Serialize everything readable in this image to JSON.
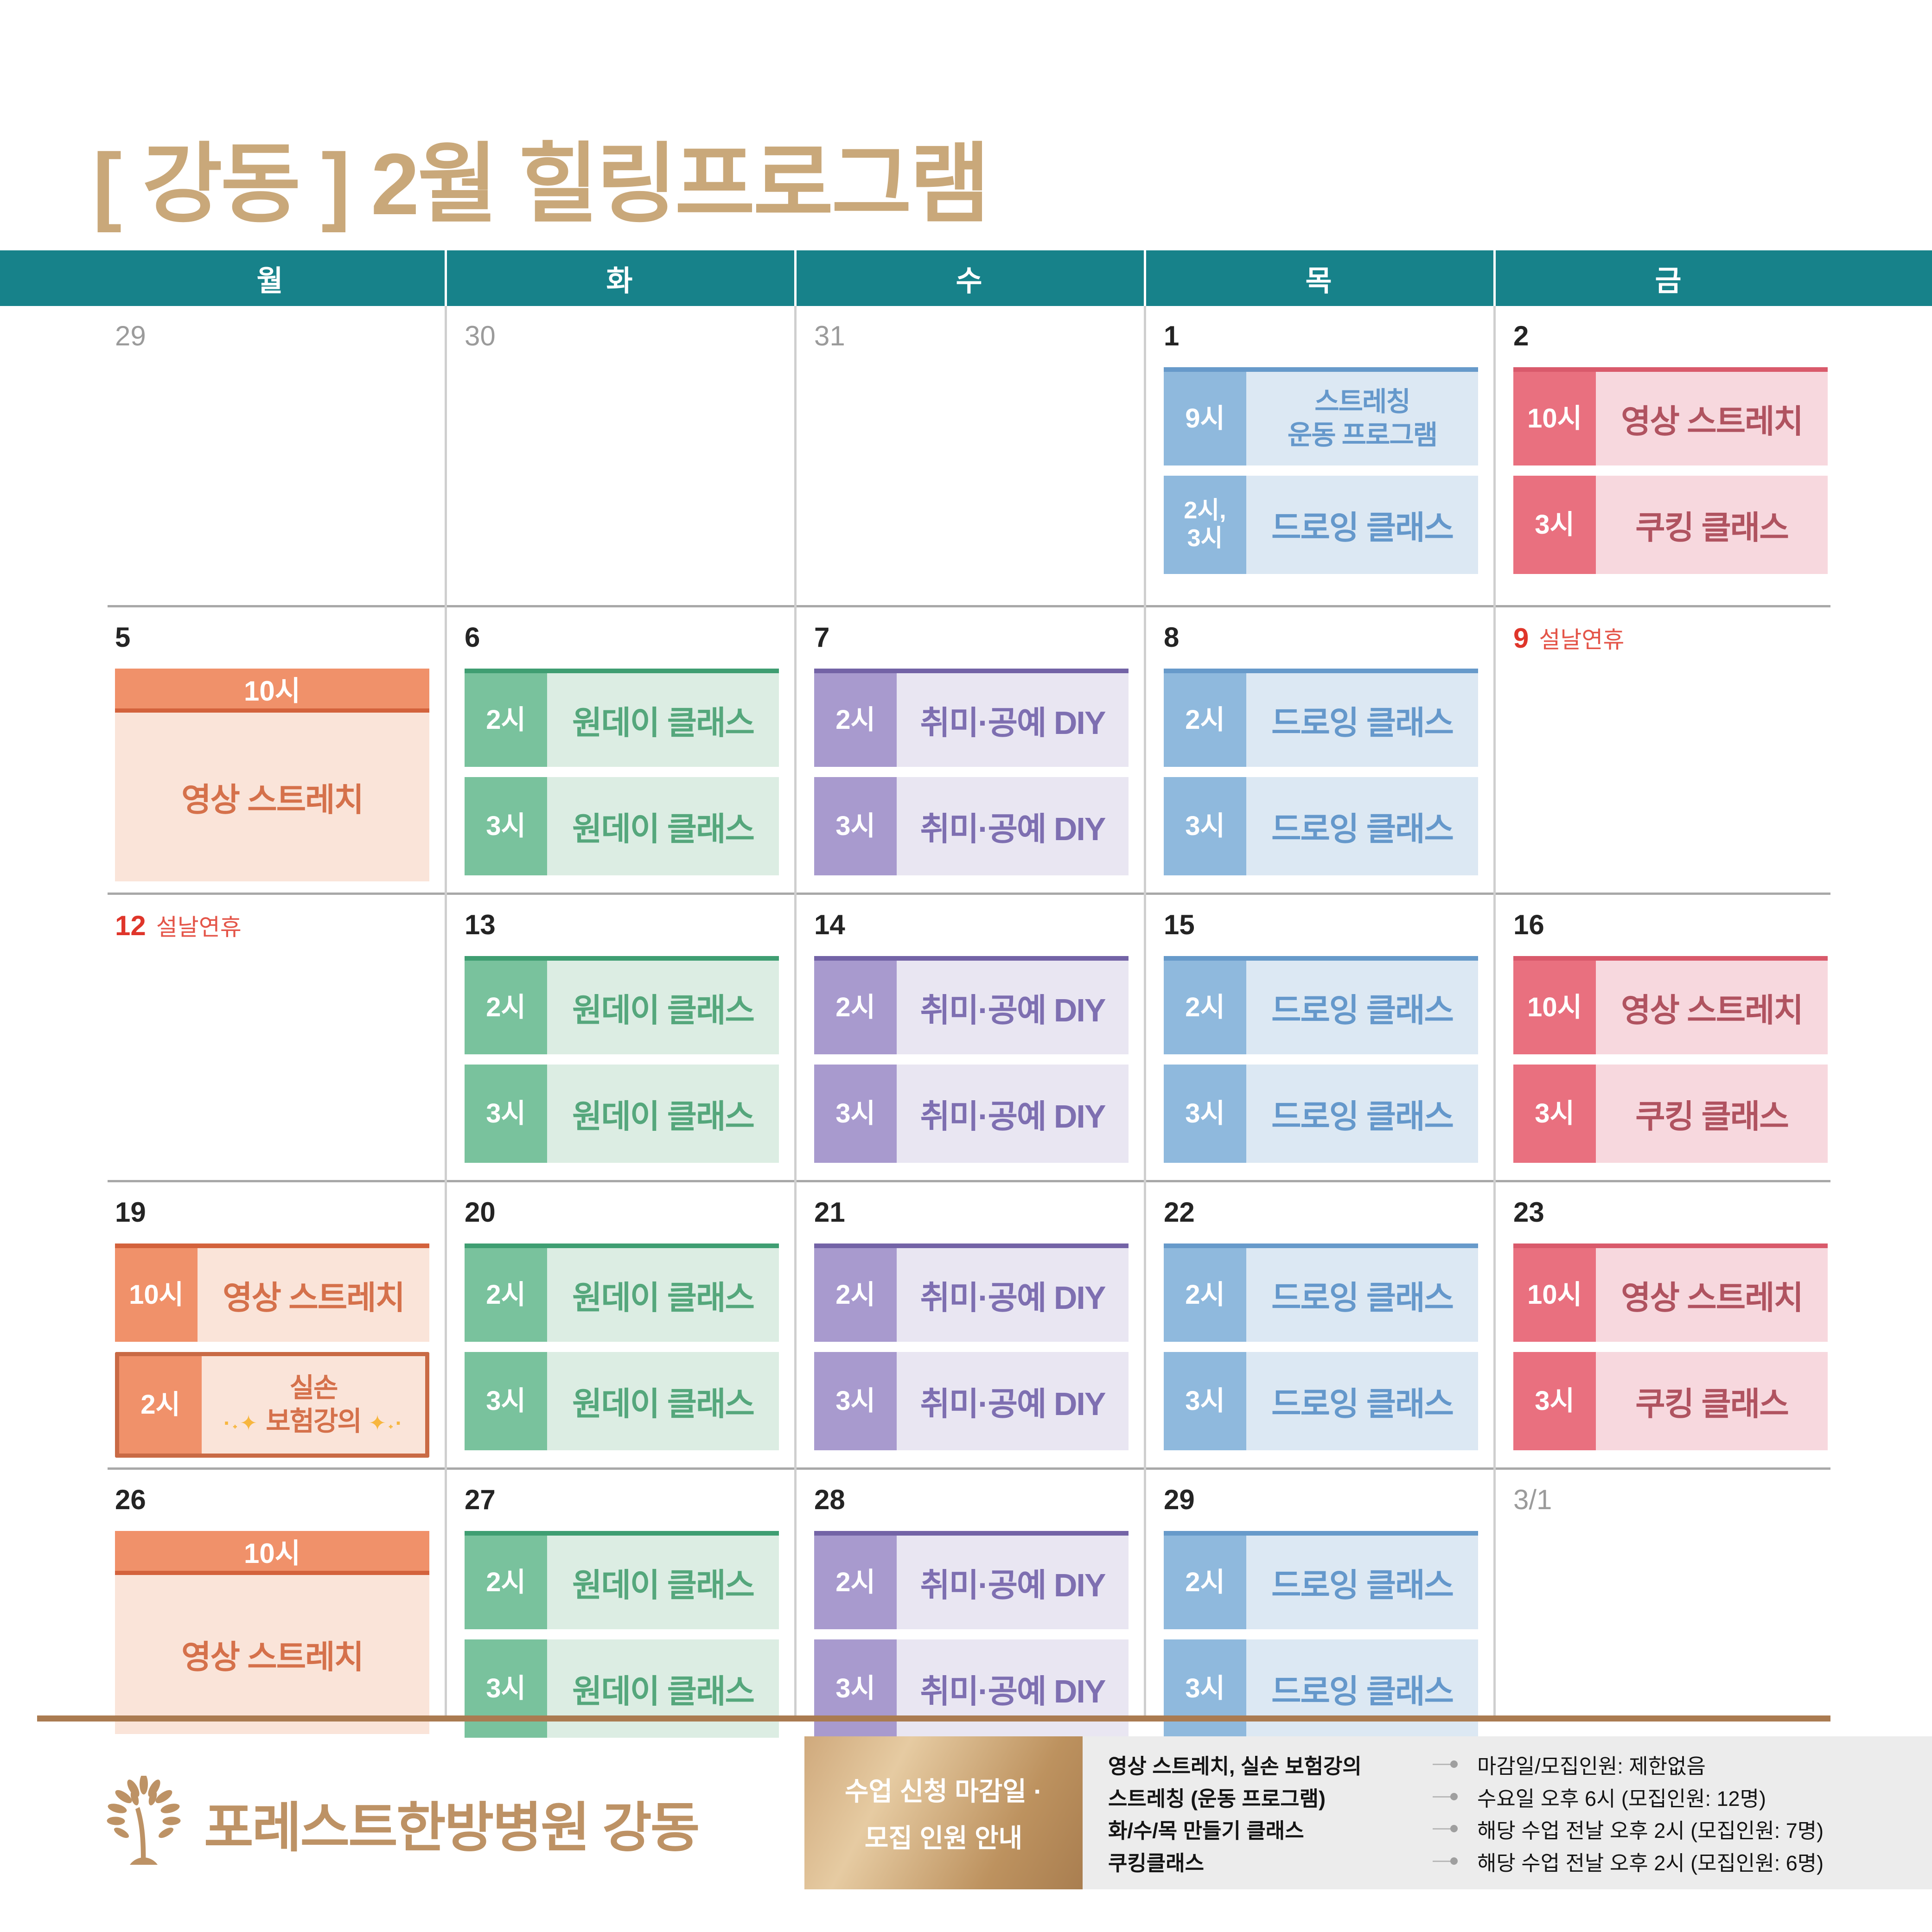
{
  "title": "[ 강동 ] 2월 힐링프로그램",
  "weekday_header": [
    "월",
    "화",
    "수",
    "목",
    "금"
  ],
  "colors": {
    "teal_header": "#17828a",
    "title_tan": "#c9a87a",
    "logo_tan": "#bd9265",
    "bottom_rule_brown": "#aa7b51",
    "holiday_red": "#df352a",
    "muted_date_gray": "#9b9b9b",
    "grid_line_gray": "#a8a8a8",
    "column_divider_gray": "#cfcfcf",
    "info_panel_gray": "#ececec",
    "sparkle_gold": "#f7b63e",
    "outline_orange": "#c96a45",
    "palettes": {
      "blue": {
        "top": "#679aca",
        "chip": "#8fb9dd",
        "body": "#dce8f3",
        "text": "#6598cb"
      },
      "red": {
        "top": "#d95a6b",
        "chip": "#e9707f",
        "body": "#f7d8de",
        "text": "#b05360"
      },
      "orange": {
        "top": "#d3623c",
        "chip": "#f0916a",
        "body": "#fae4d9",
        "text": "#d5714b"
      },
      "green": {
        "top": "#3f9e72",
        "chip": "#79c29d",
        "body": "#dcede3",
        "text": "#55a77c"
      },
      "purple": {
        "top": "#7363a6",
        "chip": "#a89ace",
        "body": "#e9e6f2",
        "text": "#7e6fb1"
      }
    }
  },
  "icons": {
    "sparkle_left": "·˖✦",
    "sparkle_right": "✦˖·",
    "tree_icon_name": "tree-icon"
  },
  "calendar": {
    "weeks": [
      {
        "days": [
          {
            "date": "29",
            "muted": true,
            "events": []
          },
          {
            "date": "30",
            "muted": true,
            "events": []
          },
          {
            "date": "31",
            "muted": true,
            "events": []
          },
          {
            "date": "1",
            "events": [
              {
                "time_lines": [
                  "9시"
                ],
                "title_lines": [
                  "스트레칭",
                  "운동 프로그램"
                ],
                "palette": "blue",
                "variant": "row",
                "top_border": true
              },
              {
                "time_lines": [
                  "2시,",
                  "3시"
                ],
                "title_lines": [
                  "드로잉 클래스"
                ],
                "palette": "blue",
                "variant": "row",
                "top_border": false
              }
            ]
          },
          {
            "date": "2",
            "events": [
              {
                "time_lines": [
                  "10시"
                ],
                "title_lines": [
                  "영상 스트레치"
                ],
                "palette": "red",
                "variant": "row",
                "top_border": true
              },
              {
                "time_lines": [
                  "3시"
                ],
                "title_lines": [
                  "쿠킹 클래스"
                ],
                "palette": "red",
                "variant": "row",
                "top_border": false
              }
            ]
          }
        ]
      },
      {
        "days": [
          {
            "date": "5",
            "events": [
              {
                "time_lines": [
                  "10시"
                ],
                "title_lines": [
                  "영상 스트레치"
                ],
                "palette": "orange",
                "variant": "banner",
                "top_border": true
              }
            ]
          },
          {
            "date": "6",
            "events": [
              {
                "time_lines": [
                  "2시"
                ],
                "title_lines": [
                  "원데이 클래스"
                ],
                "palette": "green",
                "variant": "row",
                "top_border": true
              },
              {
                "time_lines": [
                  "3시"
                ],
                "title_lines": [
                  "원데이 클래스"
                ],
                "palette": "green",
                "variant": "row",
                "top_border": false
              }
            ]
          },
          {
            "date": "7",
            "events": [
              {
                "time_lines": [
                  "2시"
                ],
                "title_lines": [
                  "취미·공예 DIY"
                ],
                "palette": "purple",
                "variant": "row",
                "top_border": true
              },
              {
                "time_lines": [
                  "3시"
                ],
                "title_lines": [
                  "취미·공예 DIY"
                ],
                "palette": "purple",
                "variant": "row",
                "top_border": false
              }
            ]
          },
          {
            "date": "8",
            "events": [
              {
                "time_lines": [
                  "2시"
                ],
                "title_lines": [
                  "드로잉 클래스"
                ],
                "palette": "blue",
                "variant": "row",
                "top_border": true
              },
              {
                "time_lines": [
                  "3시"
                ],
                "title_lines": [
                  "드로잉 클래스"
                ],
                "palette": "blue",
                "variant": "row",
                "top_border": false
              }
            ]
          },
          {
            "date": "9",
            "holiday": "설날연휴",
            "events": []
          }
        ]
      },
      {
        "days": [
          {
            "date": "12",
            "holiday": "설날연휴",
            "events": []
          },
          {
            "date": "13",
            "events": [
              {
                "time_lines": [
                  "2시"
                ],
                "title_lines": [
                  "원데이 클래스"
                ],
                "palette": "green",
                "variant": "row",
                "top_border": true
              },
              {
                "time_lines": [
                  "3시"
                ],
                "title_lines": [
                  "원데이 클래스"
                ],
                "palette": "green",
                "variant": "row",
                "top_border": false
              }
            ]
          },
          {
            "date": "14",
            "events": [
              {
                "time_lines": [
                  "2시"
                ],
                "title_lines": [
                  "취미·공예 DIY"
                ],
                "palette": "purple",
                "variant": "row",
                "top_border": true
              },
              {
                "time_lines": [
                  "3시"
                ],
                "title_lines": [
                  "취미·공예 DIY"
                ],
                "palette": "purple",
                "variant": "row",
                "top_border": false
              }
            ]
          },
          {
            "date": "15",
            "events": [
              {
                "time_lines": [
                  "2시"
                ],
                "title_lines": [
                  "드로잉 클래스"
                ],
                "palette": "blue",
                "variant": "row",
                "top_border": true
              },
              {
                "time_lines": [
                  "3시"
                ],
                "title_lines": [
                  "드로잉 클래스"
                ],
                "palette": "blue",
                "variant": "row",
                "top_border": false
              }
            ]
          },
          {
            "date": "16",
            "events": [
              {
                "time_lines": [
                  "10시"
                ],
                "title_lines": [
                  "영상 스트레치"
                ],
                "palette": "red",
                "variant": "row",
                "top_border": true
              },
              {
                "time_lines": [
                  "3시"
                ],
                "title_lines": [
                  "쿠킹 클래스"
                ],
                "palette": "red",
                "variant": "row",
                "top_border": false
              }
            ]
          }
        ]
      },
      {
        "days": [
          {
            "date": "19",
            "events": [
              {
                "time_lines": [
                  "10시"
                ],
                "title_lines": [
                  "영상 스트레치"
                ],
                "palette": "orange",
                "variant": "row",
                "top_border": true
              },
              {
                "time_lines": [
                  "2시"
                ],
                "title_lines": [
                  "실손",
                  "보험강의"
                ],
                "palette": "orange",
                "variant": "row",
                "top_border": false,
                "outlined": true,
                "sparkle": true
              }
            ]
          },
          {
            "date": "20",
            "events": [
              {
                "time_lines": [
                  "2시"
                ],
                "title_lines": [
                  "원데이 클래스"
                ],
                "palette": "green",
                "variant": "row",
                "top_border": true
              },
              {
                "time_lines": [
                  "3시"
                ],
                "title_lines": [
                  "원데이 클래스"
                ],
                "palette": "green",
                "variant": "row",
                "top_border": false
              }
            ]
          },
          {
            "date": "21",
            "events": [
              {
                "time_lines": [
                  "2시"
                ],
                "title_lines": [
                  "취미·공예 DIY"
                ],
                "palette": "purple",
                "variant": "row",
                "top_border": true
              },
              {
                "time_lines": [
                  "3시"
                ],
                "title_lines": [
                  "취미·공예 DIY"
                ],
                "palette": "purple",
                "variant": "row",
                "top_border": false
              }
            ]
          },
          {
            "date": "22",
            "events": [
              {
                "time_lines": [
                  "2시"
                ],
                "title_lines": [
                  "드로잉 클래스"
                ],
                "palette": "blue",
                "variant": "row",
                "top_border": true
              },
              {
                "time_lines": [
                  "3시"
                ],
                "title_lines": [
                  "드로잉 클래스"
                ],
                "palette": "blue",
                "variant": "row",
                "top_border": false
              }
            ]
          },
          {
            "date": "23",
            "events": [
              {
                "time_lines": [
                  "10시"
                ],
                "title_lines": [
                  "영상 스트레치"
                ],
                "palette": "red",
                "variant": "row",
                "top_border": true
              },
              {
                "time_lines": [
                  "3시"
                ],
                "title_lines": [
                  "쿠킹 클래스"
                ],
                "palette": "red",
                "variant": "row",
                "top_border": false
              }
            ]
          }
        ]
      },
      {
        "days": [
          {
            "date": "26",
            "events": [
              {
                "time_lines": [
                  "10시"
                ],
                "title_lines": [
                  "영상 스트레치"
                ],
                "palette": "orange",
                "variant": "banner",
                "top_border": true
              }
            ]
          },
          {
            "date": "27",
            "events": [
              {
                "time_lines": [
                  "2시"
                ],
                "title_lines": [
                  "원데이 클래스"
                ],
                "palette": "green",
                "variant": "row",
                "top_border": true
              },
              {
                "time_lines": [
                  "3시"
                ],
                "title_lines": [
                  "원데이 클래스"
                ],
                "palette": "green",
                "variant": "row",
                "top_border": false
              }
            ]
          },
          {
            "date": "28",
            "events": [
              {
                "time_lines": [
                  "2시"
                ],
                "title_lines": [
                  "취미·공예 DIY"
                ],
                "palette": "purple",
                "variant": "row",
                "top_border": true
              },
              {
                "time_lines": [
                  "3시"
                ],
                "title_lines": [
                  "취미·공예 DIY"
                ],
                "palette": "purple",
                "variant": "row",
                "top_border": false
              }
            ]
          },
          {
            "date": "29",
            "events": [
              {
                "time_lines": [
                  "2시"
                ],
                "title_lines": [
                  "드로잉 클래스"
                ],
                "palette": "blue",
                "variant": "row",
                "top_border": true
              },
              {
                "time_lines": [
                  "3시"
                ],
                "title_lines": [
                  "드로잉 클래스"
                ],
                "palette": "blue",
                "variant": "row",
                "top_border": false
              }
            ]
          },
          {
            "date": "3/1",
            "muted": true,
            "events": []
          }
        ]
      }
    ]
  },
  "footer": {
    "logo_text": "포레스트한방병원 강동",
    "info_title_lines": [
      "수업 신청 마감일 ·",
      "모집 인원 안내"
    ],
    "info_rows": [
      {
        "label": "영상 스트레치, 실손 보험강의",
        "value": "마감일/모집인원: 제한없음"
      },
      {
        "label": "스트레칭 (운동 프로그램)",
        "value": "수요일 오후 6시 (모집인원: 12명)"
      },
      {
        "label": "화/수/목 만들기 클래스",
        "value": "해당 수업 전날 오후 2시 (모집인원: 7명)"
      },
      {
        "label": "쿠킹클래스",
        "value": "해당 수업 전날 오후 2시 (모집인원: 6명)"
      }
    ]
  }
}
